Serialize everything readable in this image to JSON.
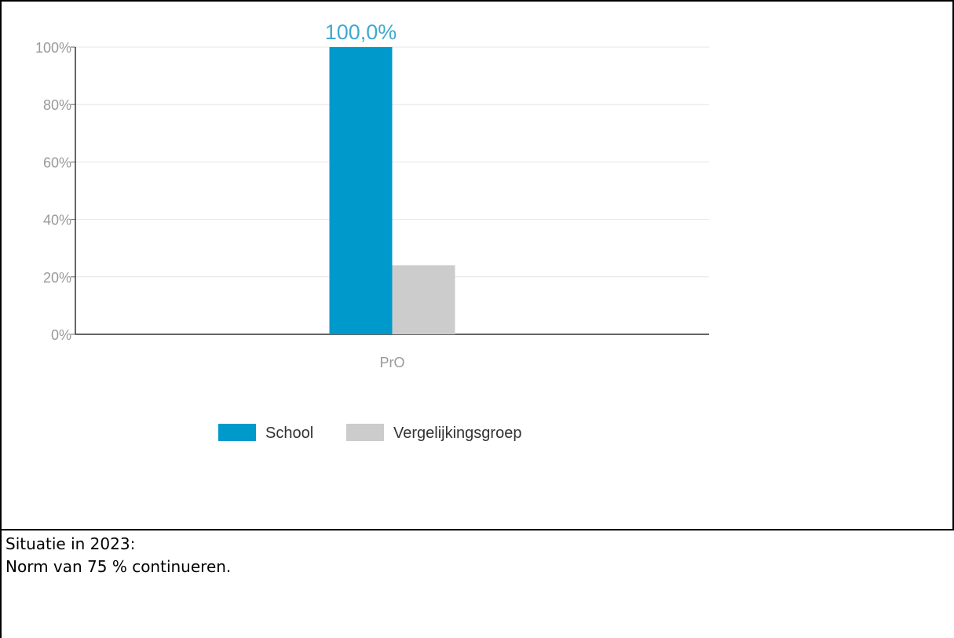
{
  "chart_data": {
    "type": "bar",
    "categories": [
      "PrO"
    ],
    "series": [
      {
        "name": "School",
        "values": [
          100.0
        ],
        "color": "#0099cc"
      },
      {
        "name": "Vergelijkingsgroep",
        "values": [
          24.0
        ],
        "color": "#cccccc"
      }
    ],
    "data_labels": [
      "100,0%"
    ],
    "y_ticks": [
      "0%",
      "20%",
      "40%",
      "60%",
      "80%",
      "100%"
    ],
    "ylim": [
      0,
      100
    ],
    "grid": true,
    "legend_position": "bottom-center",
    "label_color": "#3fa9cf"
  },
  "note": {
    "line1": "Situatie in 2023:",
    "line2": "Norm van 75 % continueren."
  }
}
